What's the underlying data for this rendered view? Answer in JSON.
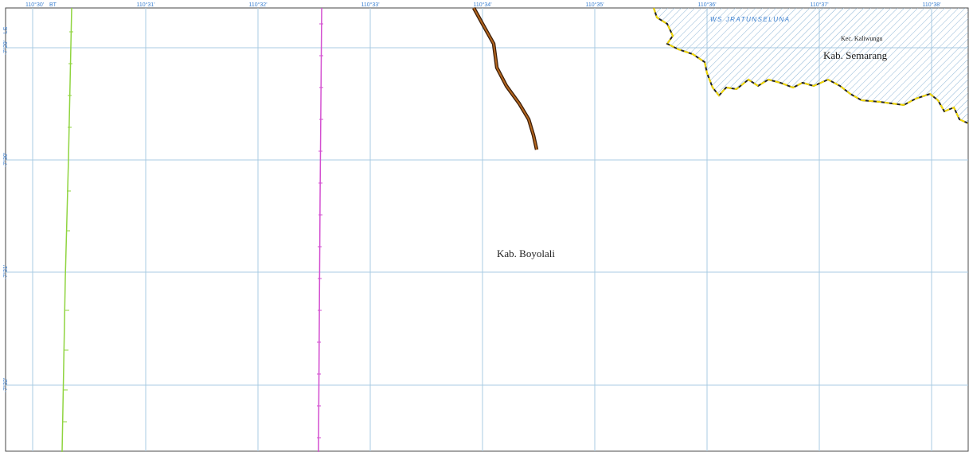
{
  "map": {
    "lon_labels": [
      "110°30'",
      "110°31'",
      "110°32'",
      "110°33'",
      "110°34'",
      "110°35'",
      "110°36'",
      "110°37'",
      "110°38'"
    ],
    "lon_unit": "BT",
    "lat_labels": [
      "-7°29'",
      "-7°30'",
      "-7°31'",
      "-7°32'"
    ],
    "lat_unit": "LS",
    "places": {
      "boyolali": "Kab. Boyolali",
      "semarang": "Kab. Semarang",
      "kaliwungu": "Kec. Kaliwungu",
      "ws": "WS JRATUNSELUNA"
    },
    "colors": {
      "grid": "#a9cbe3",
      "tick_text": "#3a7fd0",
      "green_line": "#8fd43f",
      "magenta_line": "#d34fd0",
      "road_outer": "#3b1d08",
      "road_inner": "#b2651e",
      "boundary_dash": "#f2d800",
      "hatch": "#8fb6d6"
    }
  }
}
